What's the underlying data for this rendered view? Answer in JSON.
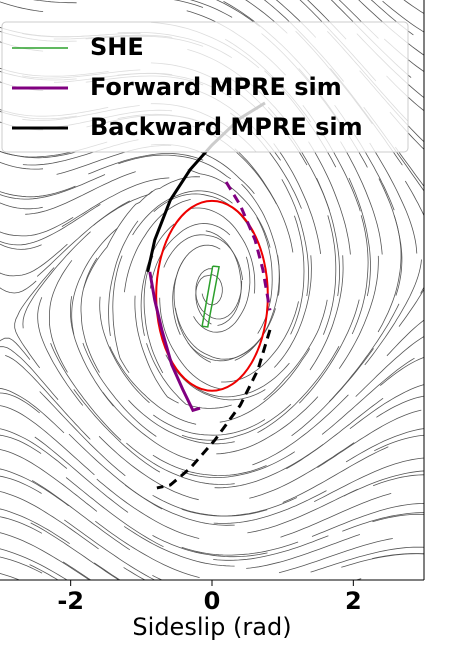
{
  "chart_data": {
    "type": "phase",
    "x_label": "Sideslip (rad)",
    "xlim": [
      -3,
      3
    ],
    "xticks": [
      -2,
      0,
      2
    ],
    "ylim": [
      -4,
      4
    ],
    "series": [
      {
        "name": "SHE",
        "color": "#2ca02c",
        "segments": [
          {
            "style": "solid",
            "x": [
              0.01,
              0.1,
              -0.06,
              -0.14,
              0.01
            ],
            "y": [
              0.33,
              0.32,
              -0.51,
              -0.5,
              0.33
            ]
          }
        ]
      },
      {
        "name": "Forward MPRE sim",
        "color": "#800080",
        "segments": [
          {
            "style": "solid",
            "x": [
              -0.88,
              -0.81,
              -0.71,
              -0.57,
              -0.41,
              -0.27,
              -0.17
            ],
            "y": [
              0.25,
              -0.14,
              -0.55,
              -1.03,
              -1.38,
              -1.66,
              -1.63
            ]
          },
          {
            "style": "dashed",
            "x": [
              0.2,
              0.4,
              0.61,
              0.72,
              0.82
            ],
            "y": [
              1.49,
              1.17,
              0.69,
              0.28,
              -0.28
            ]
          }
        ]
      },
      {
        "name": "Backward MPRE sim",
        "color": "#000000",
        "segments": [
          {
            "style": "solid",
            "x": [
              -0.91,
              -0.81,
              -0.59,
              -0.31,
              0,
              0.4,
              0.75
            ],
            "y": [
              0.25,
              0.69,
              1.24,
              1.66,
              2.0,
              2.37,
              2.58
            ]
          },
          {
            "style": "dashed",
            "x": [
              0.82,
              0.65,
              0.4,
              0.04,
              -0.31,
              -0.59,
              -0.78
            ],
            "y": [
              -0.55,
              -1.1,
              -1.59,
              -2.07,
              -2.46,
              -2.69,
              -2.73
            ]
          }
        ]
      }
    ],
    "ellipse": {
      "color": "#ee0000",
      "cx": 0,
      "cy": -0.08,
      "rx": 0.79,
      "ry": 1.31
    },
    "legend": "upper left"
  }
}
